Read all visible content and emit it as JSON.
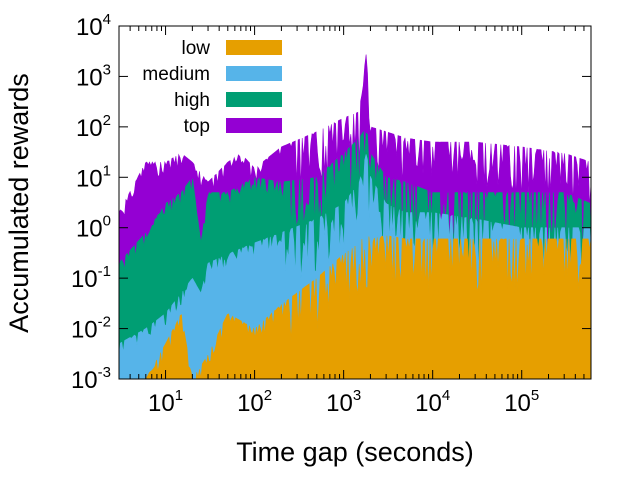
{
  "chart_data": {
    "type": "area",
    "title": "",
    "xlabel": "Time gap (seconds)",
    "ylabel": "Accumulated rewards",
    "xscale": "log",
    "yscale": "log",
    "xlim": [
      3,
      600000
    ],
    "ylim": [
      0.001,
      10000
    ],
    "grid": false,
    "legend_position": "top-left",
    "stacked": true,
    "x_ticks": [
      {
        "base": "10",
        "exp": "1",
        "value": 10
      },
      {
        "base": "10",
        "exp": "2",
        "value": 100
      },
      {
        "base": "10",
        "exp": "3",
        "value": 1000
      },
      {
        "base": "10",
        "exp": "4",
        "value": 10000
      },
      {
        "base": "10",
        "exp": "5",
        "value": 100000
      }
    ],
    "y_ticks": [
      {
        "base": "10",
        "exp": "-3",
        "value": 0.001
      },
      {
        "base": "10",
        "exp": "-2",
        "value": 0.01
      },
      {
        "base": "10",
        "exp": "-1",
        "value": 0.1
      },
      {
        "base": "10",
        "exp": "0",
        "value": 1
      },
      {
        "base": "10",
        "exp": "1",
        "value": 10
      },
      {
        "base": "10",
        "exp": "2",
        "value": 100
      },
      {
        "base": "10",
        "exp": "3",
        "value": 1000
      },
      {
        "base": "10",
        "exp": "4",
        "value": 10000
      }
    ],
    "series_order_top_to_bottom": [
      "top",
      "high",
      "medium",
      "low"
    ],
    "series": [
      {
        "name": "low",
        "color": "#E69F00",
        "envelope": {
          "x": [
            3,
            6,
            10,
            15,
            20,
            30,
            50,
            100,
            200,
            500,
            1000,
            1500,
            1800,
            2000,
            3000,
            5000,
            10000,
            30000,
            100000,
            300000,
            600000
          ],
          "y": [
            0.0005,
            0.001,
            0.005,
            0.02,
            0.001,
            0.003,
            0.02,
            0.01,
            0.03,
            0.1,
            0.3,
            0.5,
            0.8,
            0.6,
            0.7,
            0.6,
            0.6,
            0.6,
            0.6,
            0.6,
            0.6
          ]
        }
      },
      {
        "name": "medium",
        "color": "#56B4E9",
        "envelope": {
          "x": [
            3,
            6,
            10,
            15,
            20,
            25,
            30,
            50,
            100,
            200,
            500,
            1000,
            1500,
            1800,
            2000,
            3000,
            5000,
            10000,
            30000,
            100000,
            300000,
            600000
          ],
          "y": [
            0.005,
            0.01,
            0.02,
            0.05,
            0.1,
            0.05,
            0.2,
            0.3,
            0.5,
            0.8,
            1.5,
            3,
            8,
            30,
            10,
            3,
            2,
            2,
            1.5,
            1,
            1,
            1
          ]
        }
      },
      {
        "name": "high",
        "color": "#009E73",
        "envelope": {
          "x": [
            3,
            6,
            10,
            15,
            20,
            25,
            30,
            50,
            100,
            200,
            500,
            1000,
            1500,
            1800,
            2000,
            3000,
            5000,
            10000,
            30000,
            100000,
            300000,
            600000
          ],
          "y": [
            0.2,
            0.8,
            3,
            5,
            10,
            0.5,
            5,
            5,
            10,
            8,
            10,
            30,
            60,
            100,
            30,
            10,
            8,
            5,
            5,
            5,
            5,
            3
          ]
        }
      },
      {
        "name": "top",
        "color": "#9400D3",
        "envelope": {
          "x": [
            3,
            6,
            10,
            15,
            20,
            30,
            50,
            70,
            100,
            200,
            500,
            1000,
            1500,
            1800,
            2000,
            3000,
            5000,
            10000,
            30000,
            100000,
            300000,
            600000
          ],
          "y": [
            2,
            20,
            20,
            30,
            20,
            8,
            20,
            30,
            15,
            40,
            80,
            150,
            200,
            3000,
            100,
            80,
            60,
            50,
            50,
            40,
            30,
            20
          ]
        }
      }
    ]
  }
}
